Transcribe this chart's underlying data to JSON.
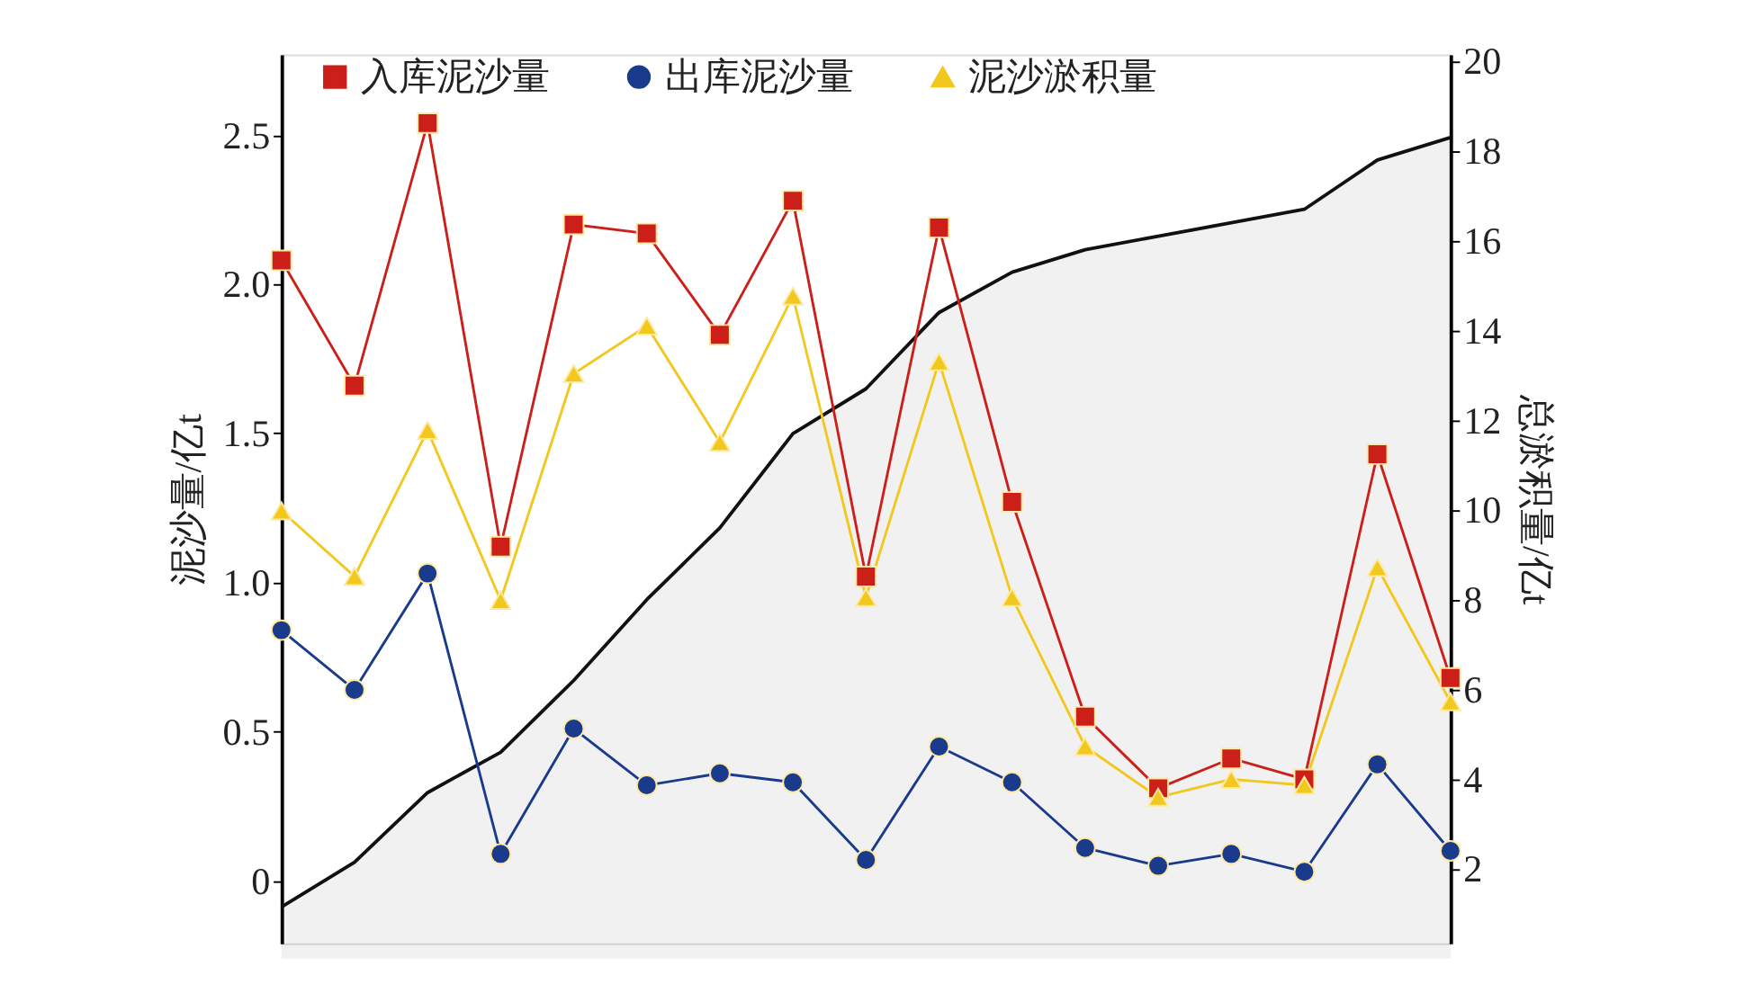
{
  "chart_data": {
    "type": "line",
    "ylabel": "泥沙量/亿t",
    "y2label": "总淤积量/亿t",
    "categories": [
      null,
      null,
      null,
      null,
      null,
      null,
      null,
      null,
      null,
      null,
      null,
      null,
      null,
      null,
      null,
      null,
      null
    ],
    "series": [
      {
        "name": "入库泥沙量",
        "color": "#cc1f1a",
        "marker": "square",
        "values": [
          2.08,
          1.66,
          2.54,
          1.12,
          2.2,
          2.17,
          1.83,
          2.28,
          1.02,
          2.19,
          1.27,
          0.55,
          0.31,
          0.41,
          0.34,
          1.43,
          0.68
        ]
      },
      {
        "name": "出库泥沙量",
        "color": "#1a3a8c",
        "marker": "circle",
        "values": [
          0.84,
          0.64,
          1.03,
          0.09,
          0.51,
          0.32,
          0.36,
          0.33,
          0.07,
          0.45,
          0.33,
          0.11,
          0.05,
          0.09,
          0.03,
          0.39,
          0.1
        ]
      },
      {
        "name": "泥沙淤积量",
        "color": "#f2c81e",
        "marker": "triangle",
        "values": [
          1.24,
          1.02,
          1.51,
          0.94,
          1.7,
          1.86,
          1.47,
          1.96,
          0.95,
          1.74,
          0.95,
          0.45,
          0.28,
          0.34,
          0.32,
          1.05,
          0.6
        ]
      },
      {
        "type": "area",
        "axis": "y2",
        "color": "#111111",
        "values": [
          1.15,
          2.15,
          3.7,
          4.6,
          6.2,
          8.0,
          9.6,
          11.7,
          12.7,
          14.4,
          15.3,
          15.8,
          16.1,
          16.4,
          16.7,
          17.8,
          18.3
        ]
      }
    ],
    "ylim": [
      -0.21,
      2.77
    ],
    "yticks": [
      0,
      0.5,
      {
        "value": 1,
        "label": "1.0"
      },
      1.5,
      {
        "value": 2,
        "label": "2.0"
      },
      2.5
    ],
    "y2lim": [
      0.34,
      20.15
    ],
    "y2ticks": [
      2,
      4,
      6,
      8,
      10,
      12,
      14,
      16,
      18,
      20
    ],
    "tick_labels": "y",
    "grid": false,
    "legend": "top"
  }
}
